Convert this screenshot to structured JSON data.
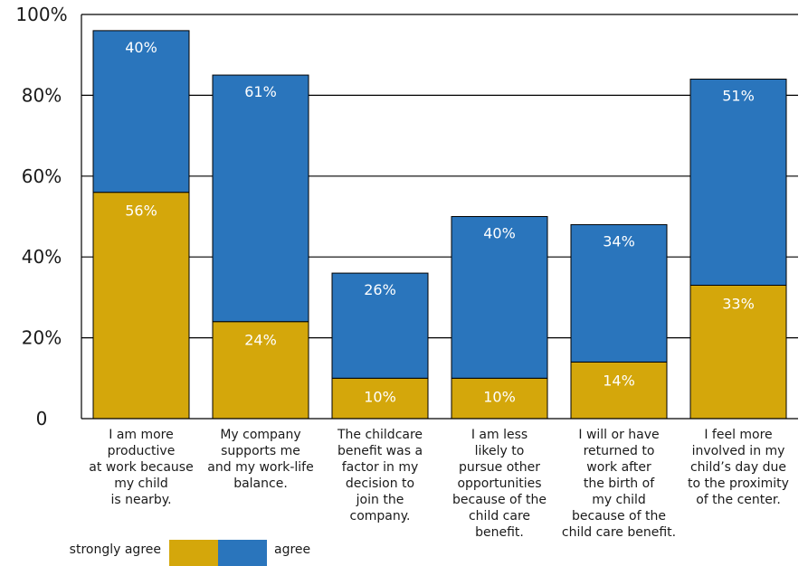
{
  "chart_data": {
    "type": "bar",
    "stacked": true,
    "categories": [
      [
        "I am more",
        "productive",
        "at work because",
        "my child",
        "is nearby."
      ],
      [
        "My company",
        "supports me",
        "and my work-life",
        "balance."
      ],
      [
        "The childcare",
        "benefit was a",
        "factor in my",
        "decision to",
        "join the",
        "company."
      ],
      [
        "I am less",
        "likely to",
        "pursue other",
        "opportunities",
        "because of the",
        "child care",
        "benefit."
      ],
      [
        "I will or have",
        "returned to",
        "work after",
        "the birth of",
        "my child",
        "because of the",
        "child care benefit."
      ],
      [
        "I feel more",
        "involved in my",
        "child’s day due",
        "to the proximity",
        "of the center."
      ]
    ],
    "series": [
      {
        "name": "strongly agree",
        "color": "#d4a70b",
        "values": [
          56,
          24,
          10,
          10,
          14,
          33
        ]
      },
      {
        "name": "agree",
        "color": "#2a75bc",
        "values": [
          40,
          61,
          26,
          40,
          34,
          51
        ]
      }
    ],
    "data_labels": {
      "strongly agree": [
        "56%",
        "24%",
        "10%",
        "10%",
        "14%",
        "33%"
      ],
      "agree": [
        "40%",
        "61%",
        "26%",
        "40%",
        "34%",
        "51%"
      ]
    },
    "yticks": [
      {
        "value": 0,
        "label": "0"
      },
      {
        "value": 20,
        "label": "20%"
      },
      {
        "value": 40,
        "label": "40%"
      },
      {
        "value": 60,
        "label": "60%"
      },
      {
        "value": 80,
        "label": "80%"
      },
      {
        "value": 100,
        "label": "100%"
      }
    ],
    "ylim": [
      0,
      100
    ],
    "grid": true,
    "legend_position": "bottom-left",
    "legend": [
      {
        "label": "strongly agree",
        "color": "#d4a70b"
      },
      {
        "label": "agree",
        "color": "#2a75bc"
      }
    ]
  }
}
